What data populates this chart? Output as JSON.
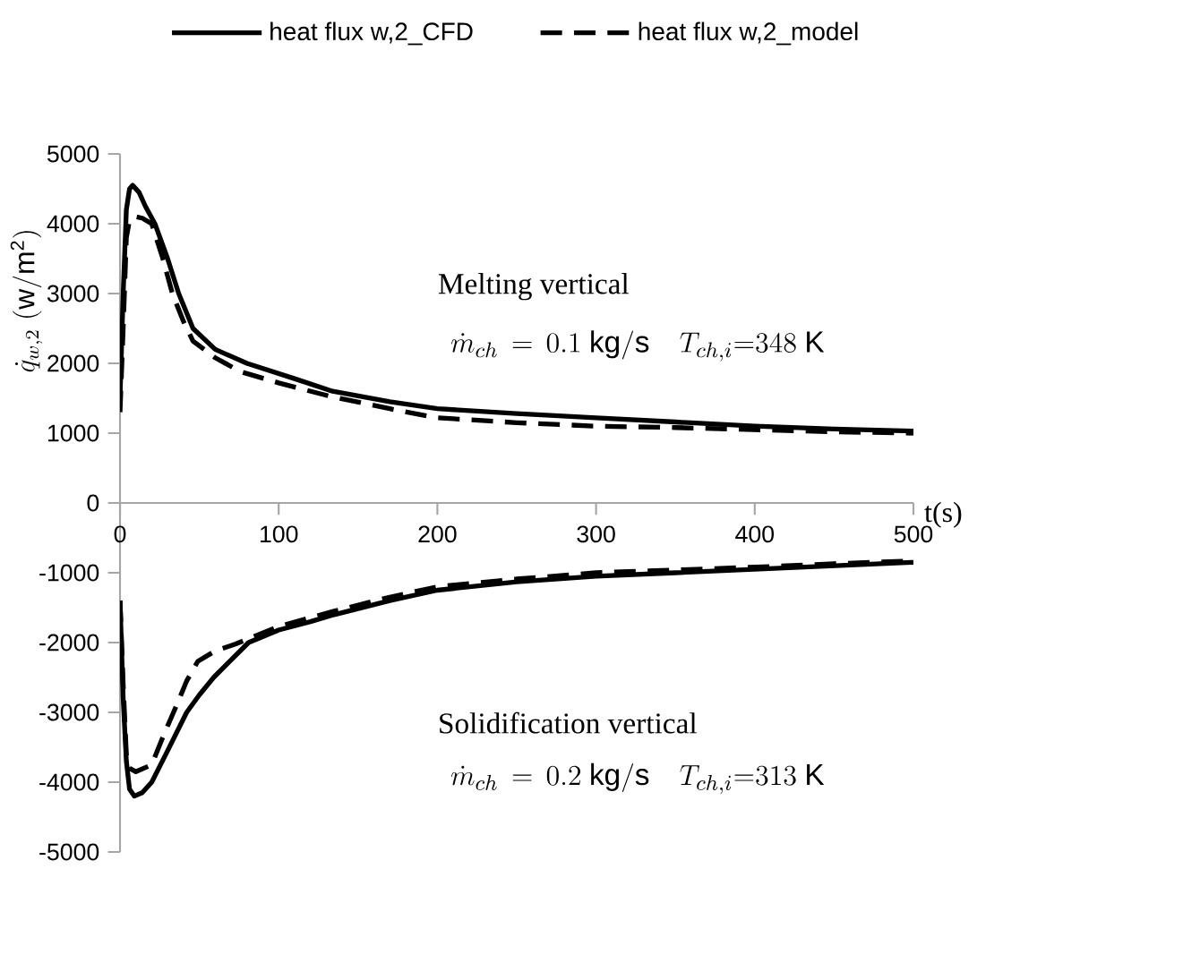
{
  "chart_data": {
    "type": "line",
    "ylabel": "\\dot{q}_{w,2}\\ (\\mathrm{w/m^{2}})",
    "xlabel": "t(s)",
    "annotations": [
      "Melting vertical",
      "\\dot{m}_{ch}\\,=\\,0.1\\ \\mathrm{kg/s}\\quad T_{ch,i}{=}348\\ \\mathrm{K}",
      "Solidification vertical",
      "\\dot{m}_{ch}\\,=\\,0.2\\ \\mathrm{kg/s}\\quad T_{ch,i}{=}313\\ \\mathrm{K}"
    ],
    "xlim": [
      0,
      500
    ],
    "xticks": [
      0,
      100,
      200,
      300,
      400,
      500
    ],
    "ylim": [
      -5000,
      5000
    ],
    "yticks": [
      -5000,
      -4000,
      -3000,
      -2000,
      -1000,
      0,
      1000,
      2000,
      3000,
      4000,
      5000
    ],
    "grid": false,
    "legend": "top",
    "marker": "none",
    "series": [
      {
        "name": "heat flux w,2_CFD",
        "color": "#000000",
        "line_style": "solid",
        "x": [
          0,
          2,
          4,
          6,
          8,
          12,
          16,
          22,
          30,
          37,
          46,
          60,
          80,
          110,
          134,
          170,
          200,
          250,
          300,
          350,
          400,
          450,
          500
        ],
        "values": [
          1500,
          3000,
          4200,
          4500,
          4550,
          4450,
          4250,
          4000,
          3500,
          3000,
          2500,
          2200,
          2000,
          1780,
          1600,
          1450,
          1350,
          1280,
          1220,
          1160,
          1100,
          1060,
          1030
        ]
      },
      {
        "name": "heat flux w,2_model",
        "color": "#000000",
        "line_style": "dashed",
        "x": [
          0,
          2,
          4,
          6,
          10,
          14,
          20,
          27,
          33,
          40,
          46,
          60,
          76,
          100,
          132,
          170,
          200,
          250,
          300,
          350,
          400,
          450,
          500
        ],
        "values": [
          1300,
          2500,
          3800,
          4050,
          4100,
          4080,
          4000,
          3500,
          3000,
          2600,
          2320,
          2080,
          1880,
          1720,
          1530,
          1350,
          1220,
          1150,
          1100,
          1080,
          1050,
          1020,
          1000
        ]
      },
      {
        "color": "#000000",
        "line_style": "solid",
        "x": [
          0,
          2,
          4,
          6,
          9,
          14,
          20,
          30,
          42,
          50,
          59,
          70,
          81,
          100,
          120,
          135,
          170,
          200,
          250,
          300,
          350,
          400,
          450,
          500
        ],
        "values": [
          -1400,
          -2800,
          -3700,
          -4100,
          -4200,
          -4150,
          -4000,
          -3550,
          -3000,
          -2750,
          -2500,
          -2250,
          -2000,
          -1820,
          -1700,
          -1600,
          -1400,
          -1250,
          -1130,
          -1050,
          -1000,
          -950,
          -900,
          -850
        ]
      },
      {
        "color": "#000000",
        "line_style": "dashed",
        "x": [
          0,
          2,
          4,
          6,
          10,
          20,
          28,
          36,
          42,
          49,
          60,
          73,
          100,
          135,
          170,
          200,
          250,
          300,
          350,
          400,
          450,
          500
        ],
        "values": [
          -1400,
          -2600,
          -3600,
          -3800,
          -3850,
          -3750,
          -3300,
          -2880,
          -2550,
          -2270,
          -2120,
          -2020,
          -1770,
          -1550,
          -1350,
          -1200,
          -1090,
          -1000,
          -960,
          -920,
          -870,
          -830
        ]
      }
    ]
  }
}
